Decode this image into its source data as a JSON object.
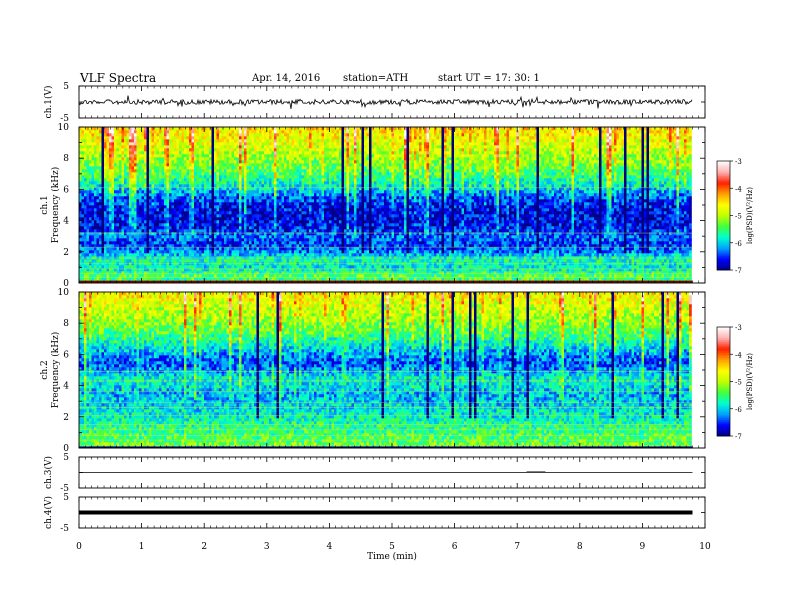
{
  "header": {
    "title": "VLF  Spectra",
    "date": "Apr. 14, 2016",
    "station": "station=ATH",
    "start": "start  UT  =   17: 30: 1"
  },
  "chart_data": [
    {
      "type": "line",
      "panel": "ch1-waveform",
      "ylabel": "ch.1(V)",
      "ylim": [
        -5,
        5
      ],
      "yticks": [
        "5",
        "-5"
      ],
      "series_level": 0,
      "note_visible": "noisy trace around 0 V with spikes"
    },
    {
      "type": "heatmap",
      "panel": "ch1-spectrogram",
      "ylabel_top": "ch.1",
      "ylabel": "Frequency  (kHz)",
      "ylim": [
        0,
        10
      ],
      "yticks": [
        "0",
        "2",
        "4",
        "6",
        "8",
        "10"
      ],
      "profile_by_freq_khz": [
        {
          "f": 0.0,
          "level": -5.6
        },
        {
          "f": 0.5,
          "level": -5.4
        },
        {
          "f": 1.0,
          "level": -5.9
        },
        {
          "f": 1.5,
          "level": -5.7
        },
        {
          "f": 2.0,
          "level": -6.2
        },
        {
          "f": 2.5,
          "level": -6.5
        },
        {
          "f": 3.0,
          "level": -6.3
        },
        {
          "f": 3.5,
          "level": -6.6
        },
        {
          "f": 4.0,
          "level": -6.7
        },
        {
          "f": 4.5,
          "level": -6.7
        },
        {
          "f": 5.0,
          "level": -6.6
        },
        {
          "f": 5.5,
          "level": -6.4
        },
        {
          "f": 6.0,
          "level": -6.0
        },
        {
          "f": 6.5,
          "level": -5.7
        },
        {
          "f": 7.0,
          "level": -5.5
        },
        {
          "f": 7.5,
          "level": -5.3
        },
        {
          "f": 8.0,
          "level": -5.1
        },
        {
          "f": 8.5,
          "level": -4.9
        },
        {
          "f": 9.0,
          "level": -4.8
        },
        {
          "f": 9.5,
          "level": -4.6
        },
        {
          "f": 10.0,
          "level": -4.5
        }
      ]
    },
    {
      "type": "heatmap",
      "panel": "ch2-spectrogram",
      "ylabel_top": "ch.2",
      "ylabel": "Frequency  (kHz)",
      "ylim": [
        0,
        10
      ],
      "yticks": [
        "0",
        "2",
        "4",
        "6",
        "8",
        "10"
      ],
      "profile_by_freq_khz": [
        {
          "f": 0.0,
          "level": -5.2
        },
        {
          "f": 0.5,
          "level": -5.4
        },
        {
          "f": 1.0,
          "level": -5.5
        },
        {
          "f": 1.5,
          "level": -5.6
        },
        {
          "f": 2.0,
          "level": -5.8
        },
        {
          "f": 2.5,
          "level": -5.9
        },
        {
          "f": 3.0,
          "level": -6.0
        },
        {
          "f": 3.5,
          "level": -6.1
        },
        {
          "f": 4.0,
          "level": -5.9
        },
        {
          "f": 4.5,
          "level": -5.8
        },
        {
          "f": 5.0,
          "level": -6.2
        },
        {
          "f": 5.5,
          "level": -6.4
        },
        {
          "f": 6.0,
          "level": -6.2
        },
        {
          "f": 6.5,
          "level": -5.9
        },
        {
          "f": 7.0,
          "level": -5.6
        },
        {
          "f": 7.5,
          "level": -5.4
        },
        {
          "f": 8.0,
          "level": -5.2
        },
        {
          "f": 8.5,
          "level": -5.0
        },
        {
          "f": 9.0,
          "level": -4.9
        },
        {
          "f": 9.5,
          "level": -4.7
        },
        {
          "f": 10.0,
          "level": -4.6
        }
      ]
    },
    {
      "type": "line",
      "panel": "ch3-waveform",
      "ylabel": "ch.3(V)",
      "ylim": [
        -5,
        5
      ],
      "yticks": [
        "5",
        "-5"
      ],
      "series_level": 0
    },
    {
      "type": "line",
      "panel": "ch4-waveform",
      "ylabel": "ch.4(V)",
      "ylim": [
        -5,
        5
      ],
      "yticks": [
        "5",
        "-5"
      ],
      "series_level": 0
    }
  ],
  "colorbar": {
    "label": "log(PSD)(V²/Hz)",
    "range": [
      -7,
      -3
    ],
    "ticks": [
      "-3",
      "-4",
      "-5",
      "-6",
      "-7"
    ],
    "colors": [
      "#000080",
      "#0000ff",
      "#00a0ff",
      "#00ffd0",
      "#40ff40",
      "#c0ff00",
      "#ffff00",
      "#ffa000",
      "#ff2000",
      "#ffb0b0",
      "#ffffff"
    ]
  },
  "xaxis": {
    "label": "Time  (min)",
    "ticks": [
      "0",
      "1",
      "2",
      "3",
      "4",
      "5",
      "6",
      "7",
      "8",
      "9",
      "10"
    ],
    "range": [
      0,
      10
    ],
    "data_end": 9.8
  }
}
